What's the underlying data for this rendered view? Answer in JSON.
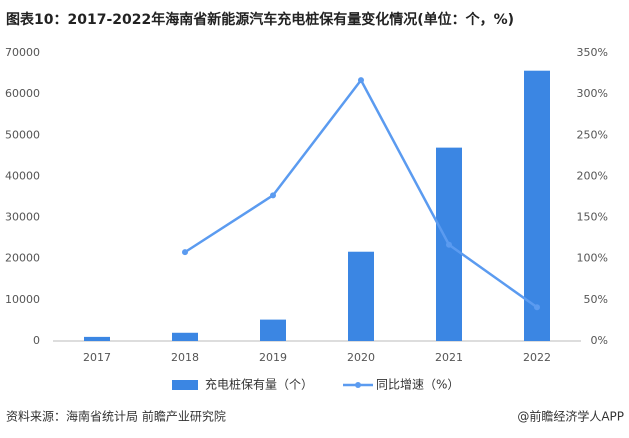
{
  "chart_data": {
    "type": "bar",
    "title": "图表10：2017-2022年海南省新能源汽车充电桩保有量变化情况(单位：个，%)",
    "categories": [
      "2017",
      "2018",
      "2019",
      "2020",
      "2021",
      "2022"
    ],
    "series": [
      {
        "name": "充电桩保有量（个）",
        "type": "bar",
        "color": "#3b86e3",
        "values": [
          1000,
          2000,
          5200,
          21700,
          47000,
          65700
        ]
      },
      {
        "name": "同比增速（%）",
        "type": "line",
        "axis": "y2",
        "color": "#5b9bf0",
        "values": [
          null,
          108,
          177,
          317,
          117,
          41
        ]
      }
    ],
    "ylim": [
      0,
      70000
    ],
    "yticks": [
      0,
      10000,
      20000,
      30000,
      40000,
      50000,
      60000,
      70000
    ],
    "y2lim": [
      0,
      350
    ],
    "y2ticks": [
      {
        "value": 0,
        "label": "0%"
      },
      {
        "value": 50,
        "label": "50%"
      },
      {
        "value": 100,
        "label": "100%"
      },
      {
        "value": 150,
        "label": "150%"
      },
      {
        "value": 200,
        "label": "200%"
      },
      {
        "value": 250,
        "label": "250%"
      },
      {
        "value": 300,
        "label": "300%"
      },
      {
        "value": 350,
        "label": "350%"
      }
    ],
    "grid": false,
    "source": "资料来源：海南省统计局 前瞻产业研究院",
    "credit": "@前瞻经济学人APP"
  }
}
